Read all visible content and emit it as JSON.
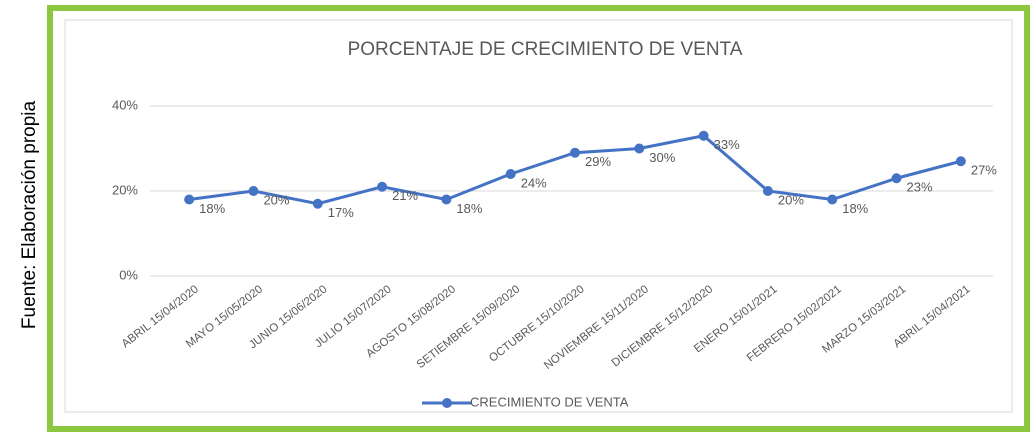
{
  "chart_data": {
    "type": "line",
    "title": "PORCENTAJE DE CRECIMIENTO DE VENTA",
    "source": "Fuente: Elaboración propia",
    "categories": [
      "ABRIL 15/04/2020",
      "MAYO 15/05/2020",
      "JUNIO 15/06/2020",
      "JULIO 15/07/2020",
      "AGOSTO 15/08/2020",
      "SETIEMBRE 15/09/2020",
      "OCTUBRE 15/10/2020",
      "NOVIEMBRE 15/11/2020",
      "DICIEMBRE 15/12/2020",
      "ENERO 15/01/2021",
      "FEBRERO 15/02/2021",
      "MARZO 15/03/2021",
      "ABRIL 15/04/2021"
    ],
    "series": [
      {
        "name": "CRECIMIENTO DE VENTA",
        "color": "#4472c4",
        "values": [
          18,
          20,
          17,
          21,
          18,
          24,
          29,
          30,
          33,
          20,
          18,
          23,
          27
        ],
        "value_labels": [
          "18%",
          "20%",
          "17%",
          "21%",
          "18%",
          "24%",
          "29%",
          "30%",
          "33%",
          "20%",
          "18%",
          "23%",
          "27%"
        ]
      }
    ],
    "ylim": [
      0,
      40
    ],
    "yticks": [
      {
        "value": 0,
        "label": "0%"
      },
      {
        "value": 20,
        "label": "20%"
      },
      {
        "value": 40,
        "label": "40%"
      }
    ],
    "grid": true,
    "legend": "bottom"
  }
}
